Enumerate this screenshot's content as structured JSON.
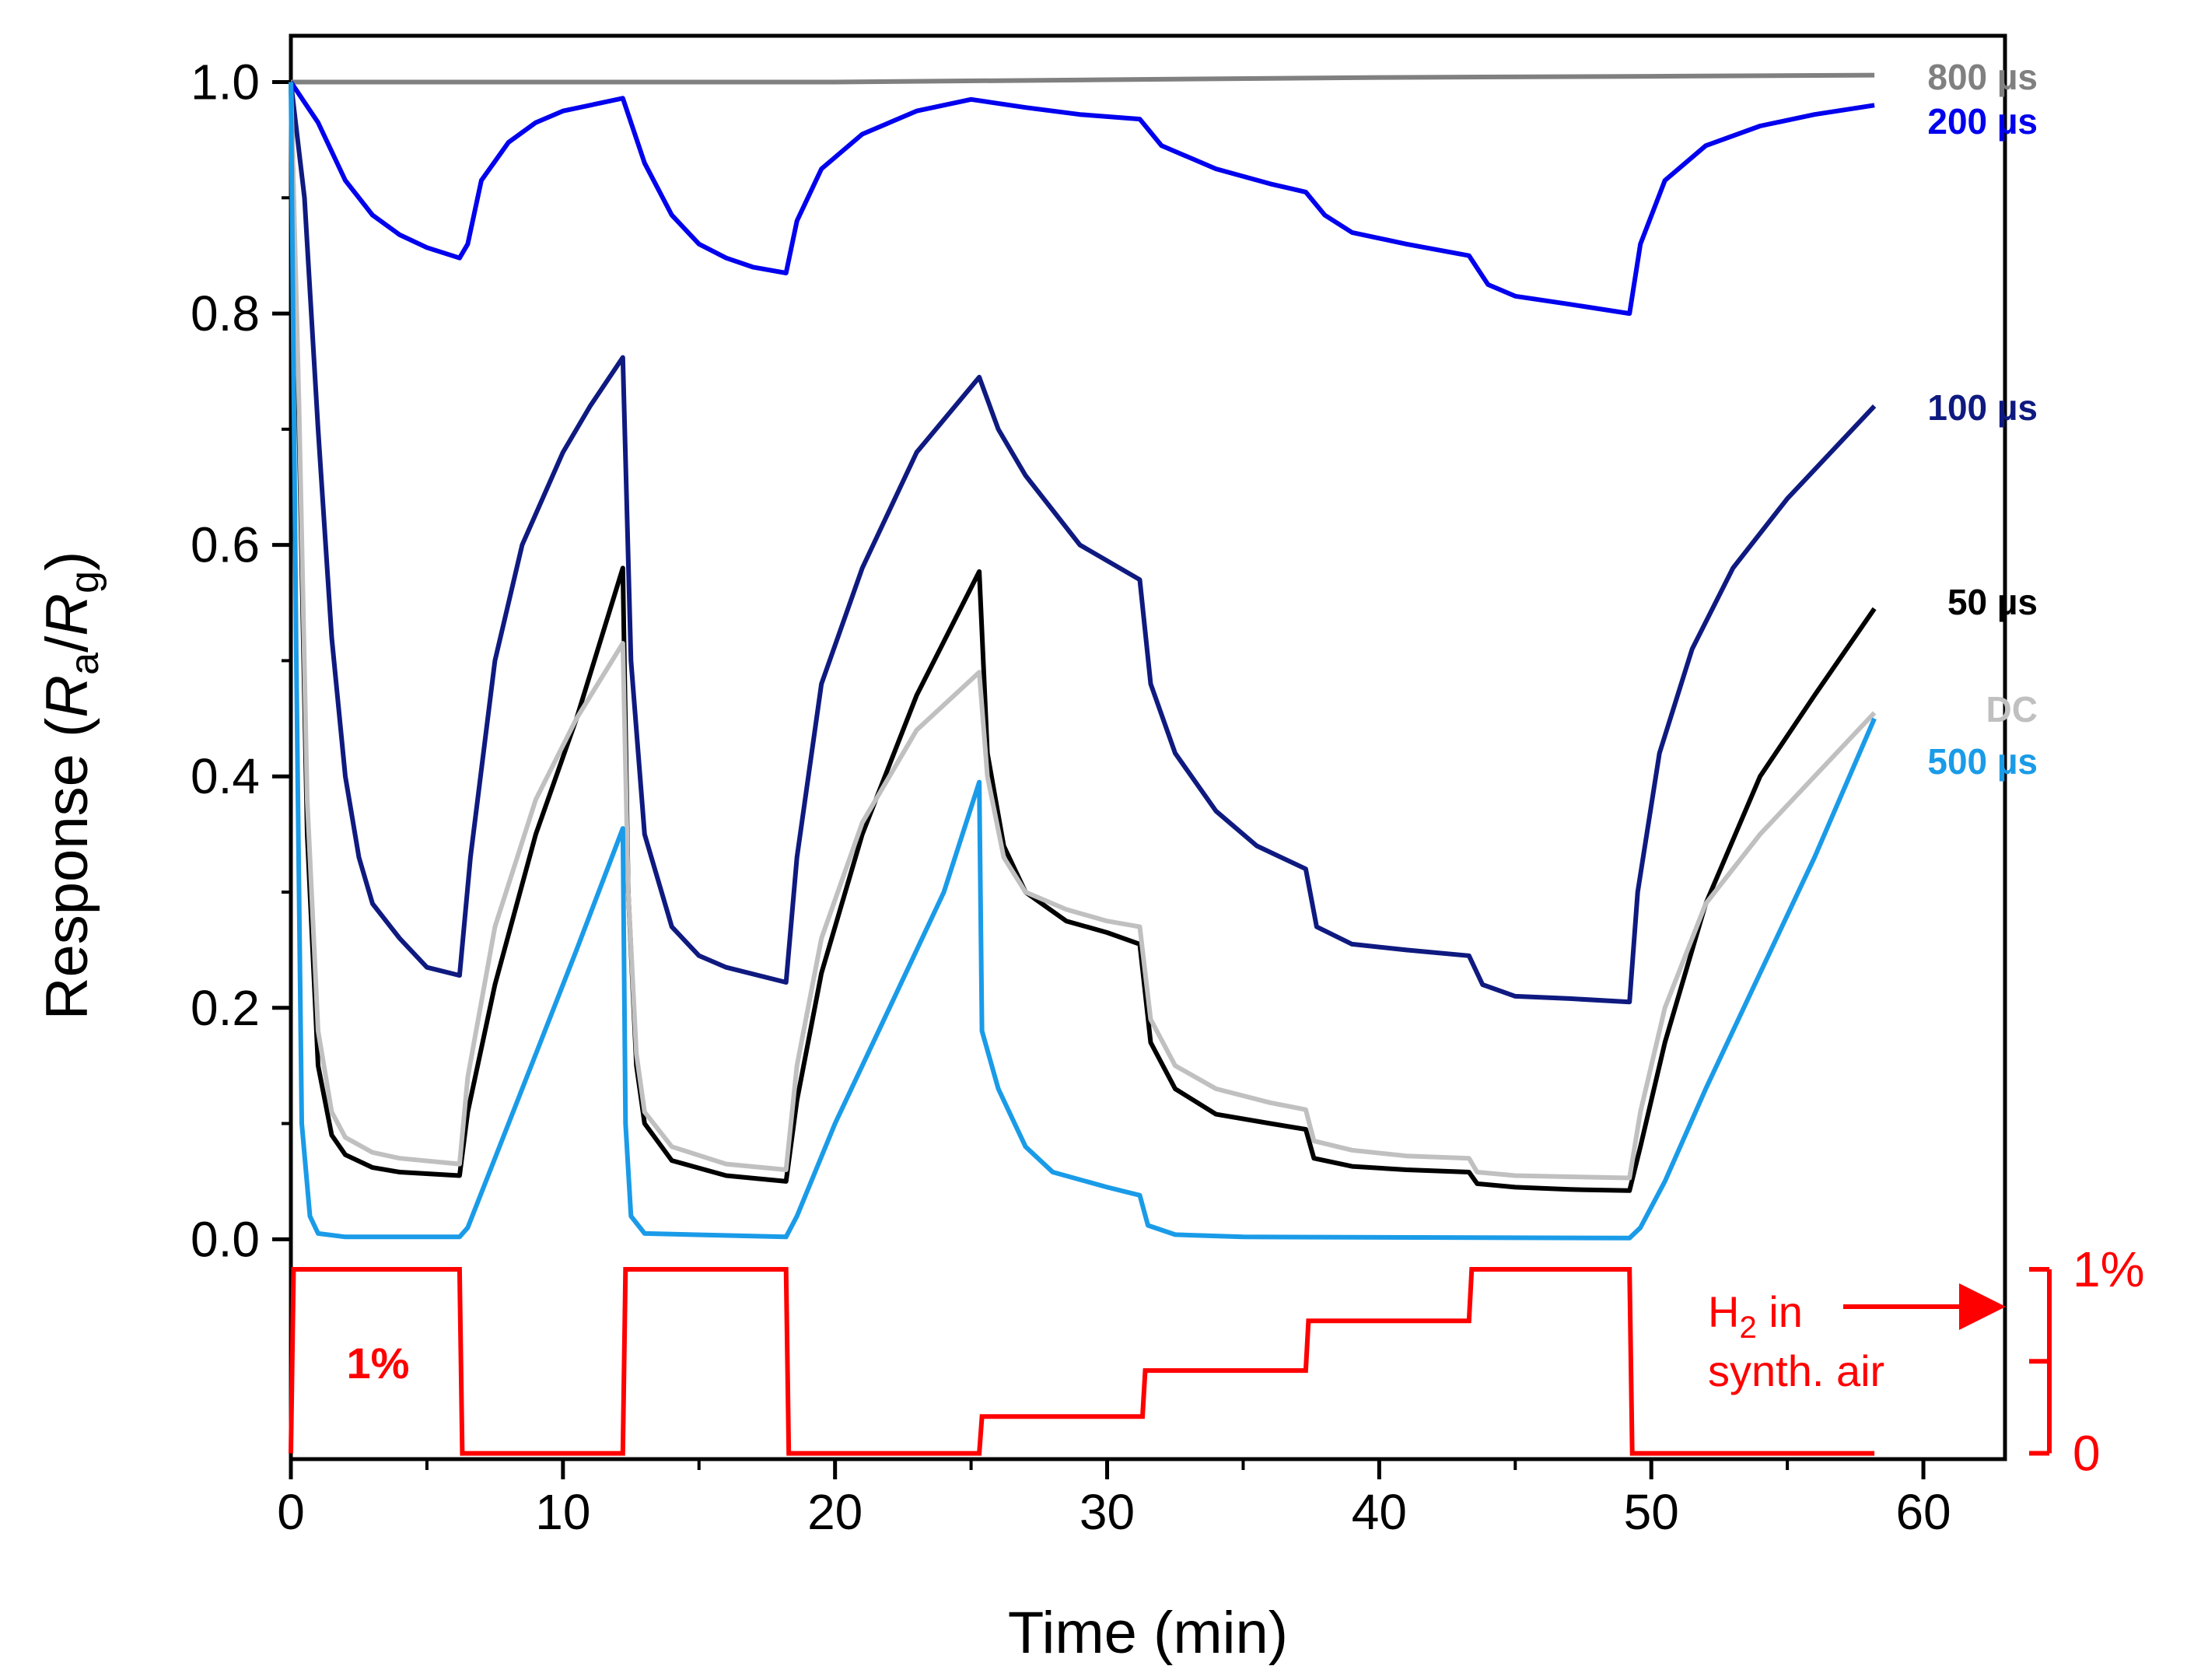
{
  "chart_data": {
    "type": "line",
    "xlabel": "Time (min)",
    "ylabel": {
      "prefix": "Response (",
      "ra": "R",
      "ra_sub": "a",
      "slash": "/",
      "rg": "R",
      "rg_sub": "g",
      "suffix": ")"
    },
    "xlim": [
      0,
      63
    ],
    "ylim": [
      -0.19,
      1.04
    ],
    "x_ticks": [
      "0",
      "10",
      "20",
      "30",
      "40",
      "50",
      "60"
    ],
    "y_ticks": [
      "0.0",
      "0.2",
      "0.4",
      "0.6",
      "0.8",
      "1.0"
    ],
    "right_axis": {
      "ticks": [
        "0",
        "1%"
      ],
      "range": [
        0,
        1
      ],
      "label": {
        "h": "H",
        "sub": "2",
        "rest1": " in",
        "rest2": "synth. air"
      },
      "color": "#ff0000"
    },
    "annotation_1pct": "1%",
    "series": [
      {
        "name": "800 µs",
        "color": "#808080",
        "points": [
          [
            0,
            1.0
          ],
          [
            10,
            1.0
          ],
          [
            20,
            1.0
          ],
          [
            30,
            1.002
          ],
          [
            40,
            1.004
          ],
          [
            50,
            1.005
          ],
          [
            58.2,
            1.006
          ]
        ]
      },
      {
        "name": "200 µs",
        "color": "#0000ee",
        "points": [
          [
            0,
            1.0
          ],
          [
            1,
            0.965
          ],
          [
            2,
            0.915
          ],
          [
            3,
            0.885
          ],
          [
            4,
            0.868
          ],
          [
            5,
            0.857
          ],
          [
            6.2,
            0.848
          ],
          [
            6.5,
            0.86
          ],
          [
            7,
            0.915
          ],
          [
            8,
            0.948
          ],
          [
            9,
            0.965
          ],
          [
            10,
            0.975
          ],
          [
            11,
            0.98
          ],
          [
            12.2,
            0.986
          ],
          [
            13,
            0.93
          ],
          [
            14,
            0.885
          ],
          [
            15,
            0.86
          ],
          [
            16,
            0.848
          ],
          [
            17,
            0.84
          ],
          [
            18.2,
            0.835
          ],
          [
            18.6,
            0.88
          ],
          [
            19.5,
            0.925
          ],
          [
            21,
            0.955
          ],
          [
            23,
            0.975
          ],
          [
            25,
            0.985
          ],
          [
            27,
            0.978
          ],
          [
            29,
            0.972
          ],
          [
            31.2,
            0.968
          ],
          [
            32,
            0.945
          ],
          [
            34,
            0.925
          ],
          [
            36,
            0.912
          ],
          [
            37.3,
            0.905
          ],
          [
            38,
            0.885
          ],
          [
            39,
            0.87
          ],
          [
            41,
            0.86
          ],
          [
            43.3,
            0.85
          ],
          [
            44,
            0.825
          ],
          [
            45,
            0.815
          ],
          [
            47,
            0.808
          ],
          [
            49.2,
            0.8
          ],
          [
            49.6,
            0.86
          ],
          [
            50.5,
            0.915
          ],
          [
            52,
            0.945
          ],
          [
            54,
            0.962
          ],
          [
            56,
            0.972
          ],
          [
            58.2,
            0.98
          ]
        ]
      },
      {
        "name": "100 µs",
        "color": "#0f1a80",
        "points": [
          [
            0,
            1.0
          ],
          [
            0.5,
            0.9
          ],
          [
            1,
            0.7
          ],
          [
            1.5,
            0.52
          ],
          [
            2,
            0.4
          ],
          [
            2.5,
            0.33
          ],
          [
            3,
            0.29
          ],
          [
            4,
            0.26
          ],
          [
            5,
            0.235
          ],
          [
            6.2,
            0.228
          ],
          [
            6.6,
            0.33
          ],
          [
            7.5,
            0.5
          ],
          [
            8.5,
            0.6
          ],
          [
            10,
            0.68
          ],
          [
            11,
            0.72
          ],
          [
            12.2,
            0.762
          ],
          [
            12.5,
            0.5
          ],
          [
            13,
            0.35
          ],
          [
            14,
            0.27
          ],
          [
            15,
            0.245
          ],
          [
            16,
            0.235
          ],
          [
            18.2,
            0.222
          ],
          [
            18.6,
            0.33
          ],
          [
            19.5,
            0.48
          ],
          [
            21,
            0.58
          ],
          [
            23,
            0.68
          ],
          [
            25.3,
            0.745
          ],
          [
            26,
            0.7
          ],
          [
            27,
            0.66
          ],
          [
            28,
            0.63
          ],
          [
            29,
            0.6
          ],
          [
            31.2,
            0.57
          ],
          [
            31.6,
            0.48
          ],
          [
            32.5,
            0.42
          ],
          [
            34,
            0.37
          ],
          [
            35.5,
            0.34
          ],
          [
            37.3,
            0.32
          ],
          [
            37.7,
            0.27
          ],
          [
            39,
            0.255
          ],
          [
            41,
            0.25
          ],
          [
            43.3,
            0.245
          ],
          [
            43.8,
            0.22
          ],
          [
            45,
            0.21
          ],
          [
            47,
            0.208
          ],
          [
            49.2,
            0.205
          ],
          [
            49.5,
            0.3
          ],
          [
            50.3,
            0.42
          ],
          [
            51.5,
            0.51
          ],
          [
            53,
            0.58
          ],
          [
            55,
            0.64
          ],
          [
            57,
            0.69
          ],
          [
            58.2,
            0.72
          ]
        ]
      },
      {
        "name": "50 µs",
        "color": "#000000",
        "points": [
          [
            0,
            1.0
          ],
          [
            0.3,
            0.7
          ],
          [
            0.6,
            0.35
          ],
          [
            1,
            0.15
          ],
          [
            1.5,
            0.09
          ],
          [
            2,
            0.073
          ],
          [
            3,
            0.062
          ],
          [
            4,
            0.058
          ],
          [
            6.2,
            0.055
          ],
          [
            6.5,
            0.11
          ],
          [
            7.5,
            0.22
          ],
          [
            9,
            0.35
          ],
          [
            10.5,
            0.45
          ],
          [
            12.2,
            0.58
          ],
          [
            12.4,
            0.3
          ],
          [
            12.7,
            0.15
          ],
          [
            13,
            0.1
          ],
          [
            14,
            0.068
          ],
          [
            16,
            0.055
          ],
          [
            18.2,
            0.05
          ],
          [
            18.6,
            0.12
          ],
          [
            19.5,
            0.23
          ],
          [
            21,
            0.35
          ],
          [
            23,
            0.47
          ],
          [
            25.3,
            0.577
          ],
          [
            25.6,
            0.42
          ],
          [
            26.2,
            0.34
          ],
          [
            27,
            0.3
          ],
          [
            28.5,
            0.275
          ],
          [
            30,
            0.265
          ],
          [
            31.2,
            0.255
          ],
          [
            31.6,
            0.17
          ],
          [
            32.5,
            0.13
          ],
          [
            34,
            0.108
          ],
          [
            36,
            0.1
          ],
          [
            37.3,
            0.095
          ],
          [
            37.6,
            0.07
          ],
          [
            39,
            0.063
          ],
          [
            41,
            0.06
          ],
          [
            43.3,
            0.058
          ],
          [
            43.6,
            0.048
          ],
          [
            45,
            0.045
          ],
          [
            47,
            0.043
          ],
          [
            49.2,
            0.042
          ],
          [
            49.6,
            0.08
          ],
          [
            50.5,
            0.17
          ],
          [
            52,
            0.29
          ],
          [
            54,
            0.4
          ],
          [
            56,
            0.47
          ],
          [
            58.2,
            0.545
          ]
        ]
      },
      {
        "name": "DC",
        "color": "#c0c0c0",
        "points": [
          [
            0,
            1.0
          ],
          [
            0.3,
            0.72
          ],
          [
            0.6,
            0.38
          ],
          [
            1,
            0.18
          ],
          [
            1.5,
            0.11
          ],
          [
            2,
            0.088
          ],
          [
            3,
            0.075
          ],
          [
            4,
            0.07
          ],
          [
            6.2,
            0.065
          ],
          [
            6.5,
            0.14
          ],
          [
            7.5,
            0.27
          ],
          [
            9,
            0.38
          ],
          [
            10.5,
            0.45
          ],
          [
            12.2,
            0.515
          ],
          [
            12.4,
            0.3
          ],
          [
            12.7,
            0.16
          ],
          [
            13,
            0.11
          ],
          [
            14,
            0.08
          ],
          [
            16,
            0.065
          ],
          [
            18.2,
            0.06
          ],
          [
            18.6,
            0.15
          ],
          [
            19.5,
            0.26
          ],
          [
            21,
            0.36
          ],
          [
            23,
            0.44
          ],
          [
            25.3,
            0.49
          ],
          [
            25.6,
            0.4
          ],
          [
            26.2,
            0.33
          ],
          [
            27,
            0.3
          ],
          [
            28.5,
            0.285
          ],
          [
            30,
            0.275
          ],
          [
            31.2,
            0.27
          ],
          [
            31.6,
            0.19
          ],
          [
            32.5,
            0.15
          ],
          [
            34,
            0.13
          ],
          [
            36,
            0.118
          ],
          [
            37.3,
            0.112
          ],
          [
            37.6,
            0.085
          ],
          [
            39,
            0.077
          ],
          [
            41,
            0.072
          ],
          [
            43.3,
            0.07
          ],
          [
            43.6,
            0.058
          ],
          [
            45,
            0.055
          ],
          [
            47,
            0.054
          ],
          [
            49.2,
            0.053
          ],
          [
            49.6,
            0.11
          ],
          [
            50.5,
            0.2
          ],
          [
            52,
            0.29
          ],
          [
            54,
            0.35
          ],
          [
            56,
            0.4
          ],
          [
            58.2,
            0.455
          ]
        ]
      },
      {
        "name": "500 µs",
        "color": "#1a9be8",
        "points": [
          [
            0,
            1.0
          ],
          [
            0.2,
            0.5
          ],
          [
            0.4,
            0.1
          ],
          [
            0.7,
            0.02
          ],
          [
            1,
            0.005
          ],
          [
            2,
            0.002
          ],
          [
            6.2,
            0.002
          ],
          [
            6.5,
            0.01
          ],
          [
            7.5,
            0.07
          ],
          [
            9,
            0.16
          ],
          [
            10.5,
            0.25
          ],
          [
            12.2,
            0.355
          ],
          [
            12.3,
            0.1
          ],
          [
            12.5,
            0.02
          ],
          [
            13,
            0.005
          ],
          [
            18.2,
            0.002
          ],
          [
            18.6,
            0.02
          ],
          [
            20,
            0.1
          ],
          [
            22,
            0.2
          ],
          [
            24,
            0.3
          ],
          [
            25.3,
            0.395
          ],
          [
            25.4,
            0.18
          ],
          [
            26,
            0.13
          ],
          [
            27,
            0.08
          ],
          [
            28,
            0.058
          ],
          [
            30,
            0.045
          ],
          [
            31.2,
            0.038
          ],
          [
            31.5,
            0.012
          ],
          [
            32.5,
            0.004
          ],
          [
            35,
            0.002
          ],
          [
            49.2,
            0.001
          ],
          [
            49.6,
            0.01
          ],
          [
            50.5,
            0.05
          ],
          [
            52,
            0.13
          ],
          [
            54,
            0.23
          ],
          [
            56,
            0.33
          ],
          [
            58.2,
            0.45
          ]
        ]
      }
    ],
    "h2_signal": {
      "name": "H2 in synth. air",
      "color": "#ff0000",
      "points": [
        [
          0,
          0
        ],
        [
          0.1,
          1
        ],
        [
          6.2,
          1
        ],
        [
          6.3,
          0
        ],
        [
          12.2,
          0
        ],
        [
          12.3,
          1
        ],
        [
          18.2,
          1
        ],
        [
          18.3,
          0
        ],
        [
          25.3,
          0
        ],
        [
          25.4,
          0.2
        ],
        [
          31.3,
          0.2
        ],
        [
          31.4,
          0.45
        ],
        [
          37.3,
          0.45
        ],
        [
          37.4,
          0.72
        ],
        [
          43.3,
          0.72
        ],
        [
          43.4,
          1
        ],
        [
          49.2,
          1
        ],
        [
          49.3,
          0
        ],
        [
          58.2,
          0
        ]
      ]
    }
  }
}
